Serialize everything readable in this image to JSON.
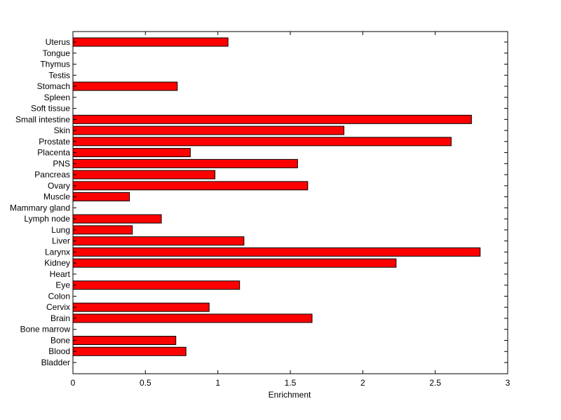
{
  "chart_data": {
    "type": "bar",
    "orientation": "horizontal",
    "title": "",
    "xlabel": "Enrichment",
    "ylabel": "",
    "xlim": [
      0,
      3
    ],
    "xticks": [
      "0",
      "0.5",
      "1",
      "1.5",
      "2",
      "2.5",
      "3"
    ],
    "grid": false,
    "bar_color": "#ff0000",
    "categories": [
      "Uterus",
      "Tongue",
      "Thymus",
      "Testis",
      "Stomach",
      "Spleen",
      "Soft tissue",
      "Small intestine",
      "Skin",
      "Prostate",
      "Placenta",
      "PNS",
      "Pancreas",
      "Ovary",
      "Muscle",
      "Mammary gland",
      "Lymph node",
      "Lung",
      "Liver",
      "Larynx",
      "Kidney",
      "Heart",
      "Eye",
      "Colon",
      "Cervix",
      "Brain",
      "Bone marrow",
      "Bone",
      "Blood",
      "Bladder"
    ],
    "values": [
      1.07,
      0,
      0,
      0,
      0.72,
      0,
      0,
      2.75,
      1.87,
      2.61,
      0.81,
      1.55,
      0.98,
      1.62,
      0.39,
      0,
      0.61,
      0.41,
      1.18,
      2.81,
      2.23,
      0,
      1.15,
      0,
      0.94,
      1.65,
      0,
      0.71,
      0.78,
      0
    ]
  }
}
